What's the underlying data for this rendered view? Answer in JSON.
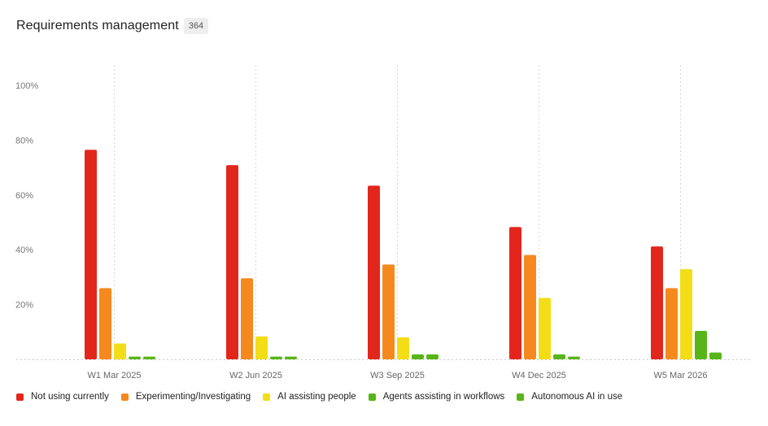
{
  "header": {
    "title": "Requirements management",
    "count": "364"
  },
  "chart_data": {
    "type": "bar",
    "title": "Requirements management",
    "xlabel": "",
    "ylabel": "",
    "ylim": [
      0,
      100
    ],
    "yticks": [
      "20%",
      "40%",
      "60%",
      "80%",
      "100%"
    ],
    "ytick_values": [
      20,
      40,
      60,
      80,
      100
    ],
    "grid": "vertical dotted lines at categories, dotted baseline",
    "legend_position": "bottom-left",
    "categories": [
      "W1 Mar 2025",
      "W2 Jun 2025",
      "W3 Sep 2025",
      "W4 Dec 2025",
      "W5 Mar 2026"
    ],
    "series": [
      {
        "name": "Not using currently",
        "color": "#e3261c",
        "values": [
          76.5,
          70.9,
          63.4,
          48.3,
          41.2
        ]
      },
      {
        "name": "Experimenting/Investigating",
        "color": "#f5891e",
        "values": [
          26.0,
          29.6,
          34.6,
          38.1,
          26.0
        ]
      },
      {
        "name": "AI assisting people",
        "color": "#f3dd17",
        "values": [
          5.8,
          8.4,
          8.0,
          22.4,
          32.9
        ]
      },
      {
        "name": "Agents assisting in workflows",
        "color": "#58b518",
        "values": [
          1.0,
          1.0,
          1.8,
          1.8,
          10.4
        ]
      },
      {
        "name": "Autonomous AI in use",
        "color": "#58b518",
        "values": [
          1.0,
          1.0,
          1.8,
          1.0,
          2.5
        ]
      }
    ]
  }
}
